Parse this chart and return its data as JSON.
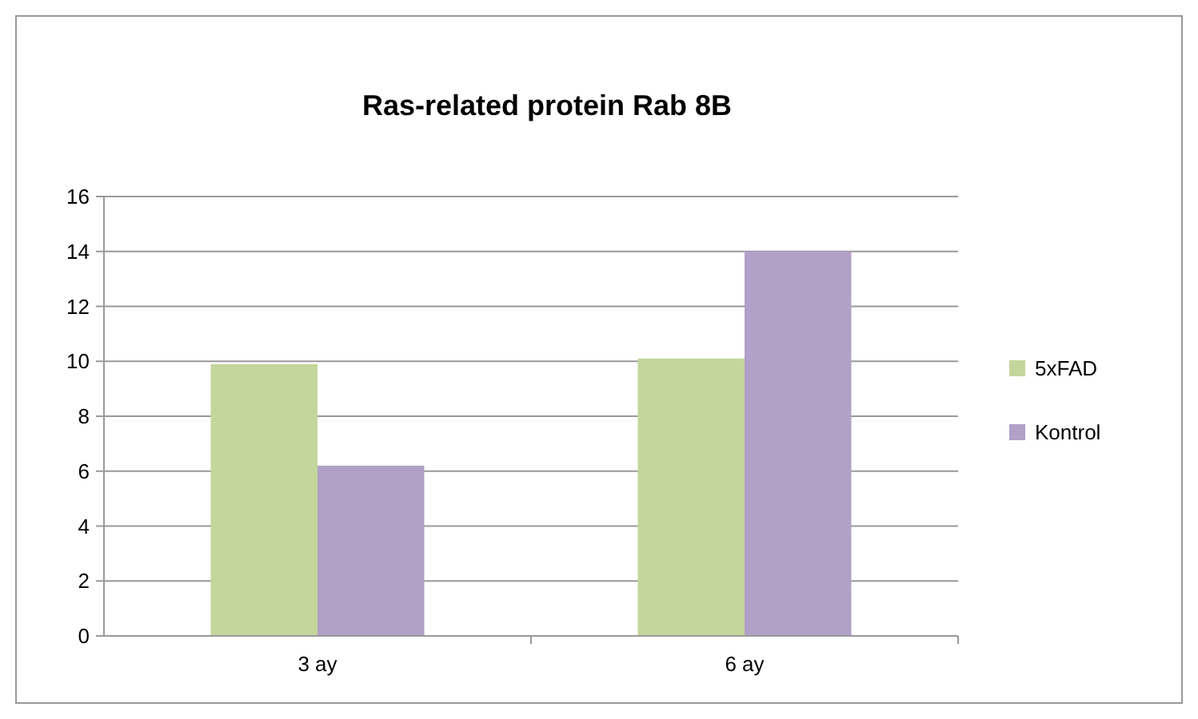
{
  "chart_data": {
    "type": "bar",
    "title": "Ras-related protein Rab 8B",
    "categories": [
      "3 ay",
      "6 ay"
    ],
    "series": [
      {
        "name": "5xFAD",
        "color": "#c3d69b",
        "values": [
          9.9,
          10.1
        ]
      },
      {
        "name": "Kontrol",
        "color": "#b1a0c7",
        "values": [
          6.2,
          14.0
        ]
      }
    ],
    "ylim": [
      0,
      16
    ],
    "yticks": [
      0,
      2,
      4,
      6,
      8,
      10,
      12,
      14,
      16
    ],
    "grid": "y",
    "legend": "right"
  }
}
